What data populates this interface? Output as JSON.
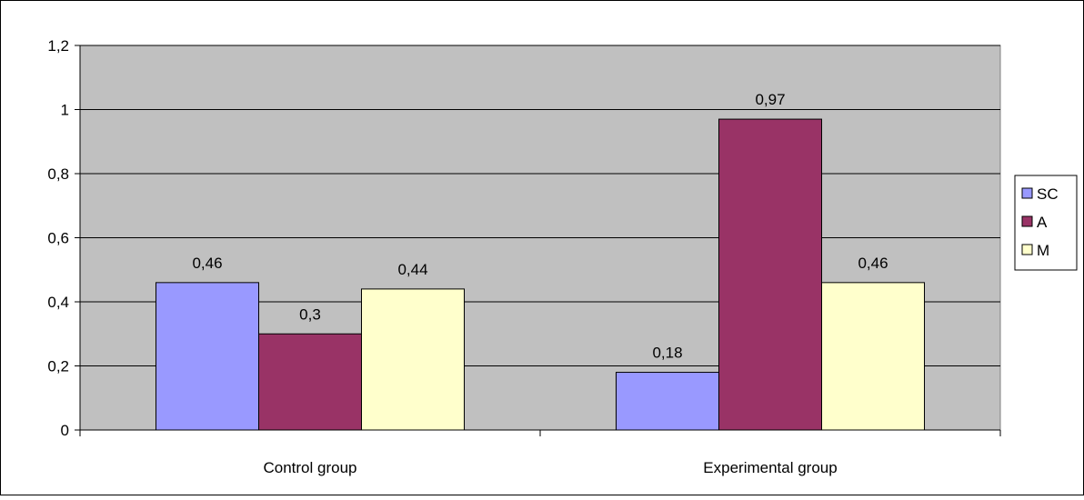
{
  "chart_data": {
    "type": "bar",
    "title": "",
    "xlabel": "",
    "ylabel": "",
    "categories": [
      "Control group",
      "Experimental group"
    ],
    "series": [
      {
        "name": "SC",
        "values": [
          0.46,
          0.18
        ],
        "labels": [
          "0,46",
          "0,18"
        ],
        "color": "#9999ff"
      },
      {
        "name": "A",
        "values": [
          0.3,
          0.97
        ],
        "labels": [
          "0,3",
          "0,97"
        ],
        "color": "#993366"
      },
      {
        "name": "M",
        "values": [
          0.44,
          0.46
        ],
        "labels": [
          "0,44",
          "0,46"
        ],
        "color": "#ffffcc"
      }
    ],
    "ylim": [
      0,
      1.2
    ],
    "yticks": [
      0,
      0.2,
      0.4,
      0.6,
      0.8,
      1,
      1.2
    ],
    "ytick_labels": [
      "0",
      "0,2",
      "0,4",
      "0,6",
      "0,8",
      "1",
      "1,2"
    ],
    "grid": true,
    "legend_position": "right",
    "plot_background": "#c0c0c0"
  }
}
